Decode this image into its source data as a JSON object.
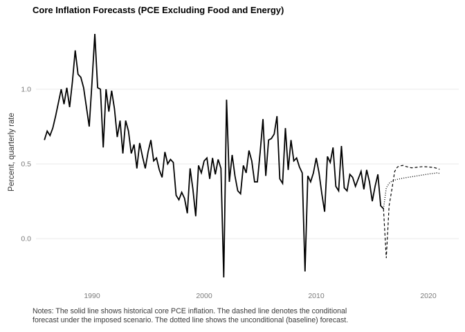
{
  "title": "Core Inflation Forecasts (PCE Excluding Food and Energy)",
  "colors": {
    "background": "#ffffff",
    "line": "#000000",
    "grid": "#e8e8e8",
    "tick_text": "#7a7a7a",
    "axis_title_text": "#333333",
    "notes_text": "#3a3a3a",
    "title_text": "#000000"
  },
  "notes": {
    "lines": [
      "Notes: The solid line shows historical core PCE inflation. The dashed line denotes the conditional",
      "forecast under the imposed scenario. The dotted line shows the unconditional (baseline) forecast."
    ]
  },
  "chart_data": {
    "type": "line",
    "title": "Core Inflation Forecasts (PCE Excluding Food and Energy)",
    "xlabel": "",
    "ylabel": "Percent, quarterly rate",
    "grid": "horizontal-only",
    "legend": "none",
    "x_axis": {
      "tick_labels": [
        "1990",
        "2000",
        "2010",
        "2020"
      ],
      "tick_years": [
        1990,
        2000,
        2010,
        2020
      ],
      "range_years": [
        1985.0,
        2022.7
      ]
    },
    "y_axis": {
      "tick_labels": [
        "0.0",
        "0.5",
        "1.0"
      ],
      "tick_values": [
        0.0,
        0.5,
        1.0
      ],
      "ylim": [
        -0.3,
        1.46
      ]
    },
    "frequency": "quarterly",
    "series": [
      {
        "name": "Historical core PCE inflation",
        "style": "solid",
        "color": "#000000",
        "start_year": 1985.75,
        "step_years": 0.25,
        "values": [
          0.66,
          0.72,
          0.69,
          0.74,
          0.82,
          0.91,
          1.0,
          0.9,
          1.01,
          0.88,
          1.05,
          1.26,
          1.1,
          1.08,
          1.01,
          0.88,
          0.75,
          1.05,
          1.37,
          1.01,
          1.0,
          0.61,
          1.0,
          0.85,
          0.99,
          0.87,
          0.68,
          0.79,
          0.57,
          0.79,
          0.72,
          0.57,
          0.63,
          0.47,
          0.64,
          0.55,
          0.47,
          0.58,
          0.66,
          0.52,
          0.54,
          0.46,
          0.41,
          0.58,
          0.5,
          0.53,
          0.51,
          0.29,
          0.26,
          0.31,
          0.27,
          0.17,
          0.47,
          0.33,
          0.15,
          0.49,
          0.44,
          0.52,
          0.54,
          0.4,
          0.54,
          0.43,
          0.53,
          0.47,
          -0.26,
          0.93,
          0.38,
          0.56,
          0.42,
          0.32,
          0.3,
          0.49,
          0.44,
          0.59,
          0.52,
          0.38,
          0.38,
          0.58,
          0.8,
          0.42,
          0.66,
          0.67,
          0.7,
          0.82,
          0.4,
          0.37,
          0.74,
          0.46,
          0.66,
          0.52,
          0.54,
          0.48,
          0.44,
          -0.22,
          0.42,
          0.38,
          0.44,
          0.54,
          0.44,
          0.3,
          0.18,
          0.55,
          0.51,
          0.61,
          0.35,
          0.32,
          0.62,
          0.34,
          0.32,
          0.43,
          0.41,
          0.35,
          0.4,
          0.45,
          0.33,
          0.46,
          0.38,
          0.25,
          0.35,
          0.43,
          0.22,
          0.2
        ]
      },
      {
        "name": "Conditional forecast under the imposed scenario",
        "style": "dashed",
        "color": "#000000",
        "start_year": 2016.0,
        "step_years": 0.25,
        "values": [
          0.2,
          -0.13,
          0.22,
          0.33,
          0.45,
          0.48,
          0.487,
          0.49,
          0.483,
          0.478,
          0.474,
          0.475,
          0.478,
          0.48,
          0.482,
          0.481,
          0.48,
          0.478,
          0.476,
          0.471,
          0.464
        ]
      },
      {
        "name": "Unconditional (baseline) forecast",
        "style": "dotted",
        "color": "#000000",
        "start_year": 2016.0,
        "step_years": 0.25,
        "values": [
          0.2,
          0.34,
          0.37,
          0.385,
          0.392,
          0.397,
          0.401,
          0.405,
          0.408,
          0.411,
          0.414,
          0.417,
          0.42,
          0.423,
          0.426,
          0.429,
          0.432,
          0.435,
          0.437,
          0.44,
          0.437
        ]
      }
    ]
  }
}
